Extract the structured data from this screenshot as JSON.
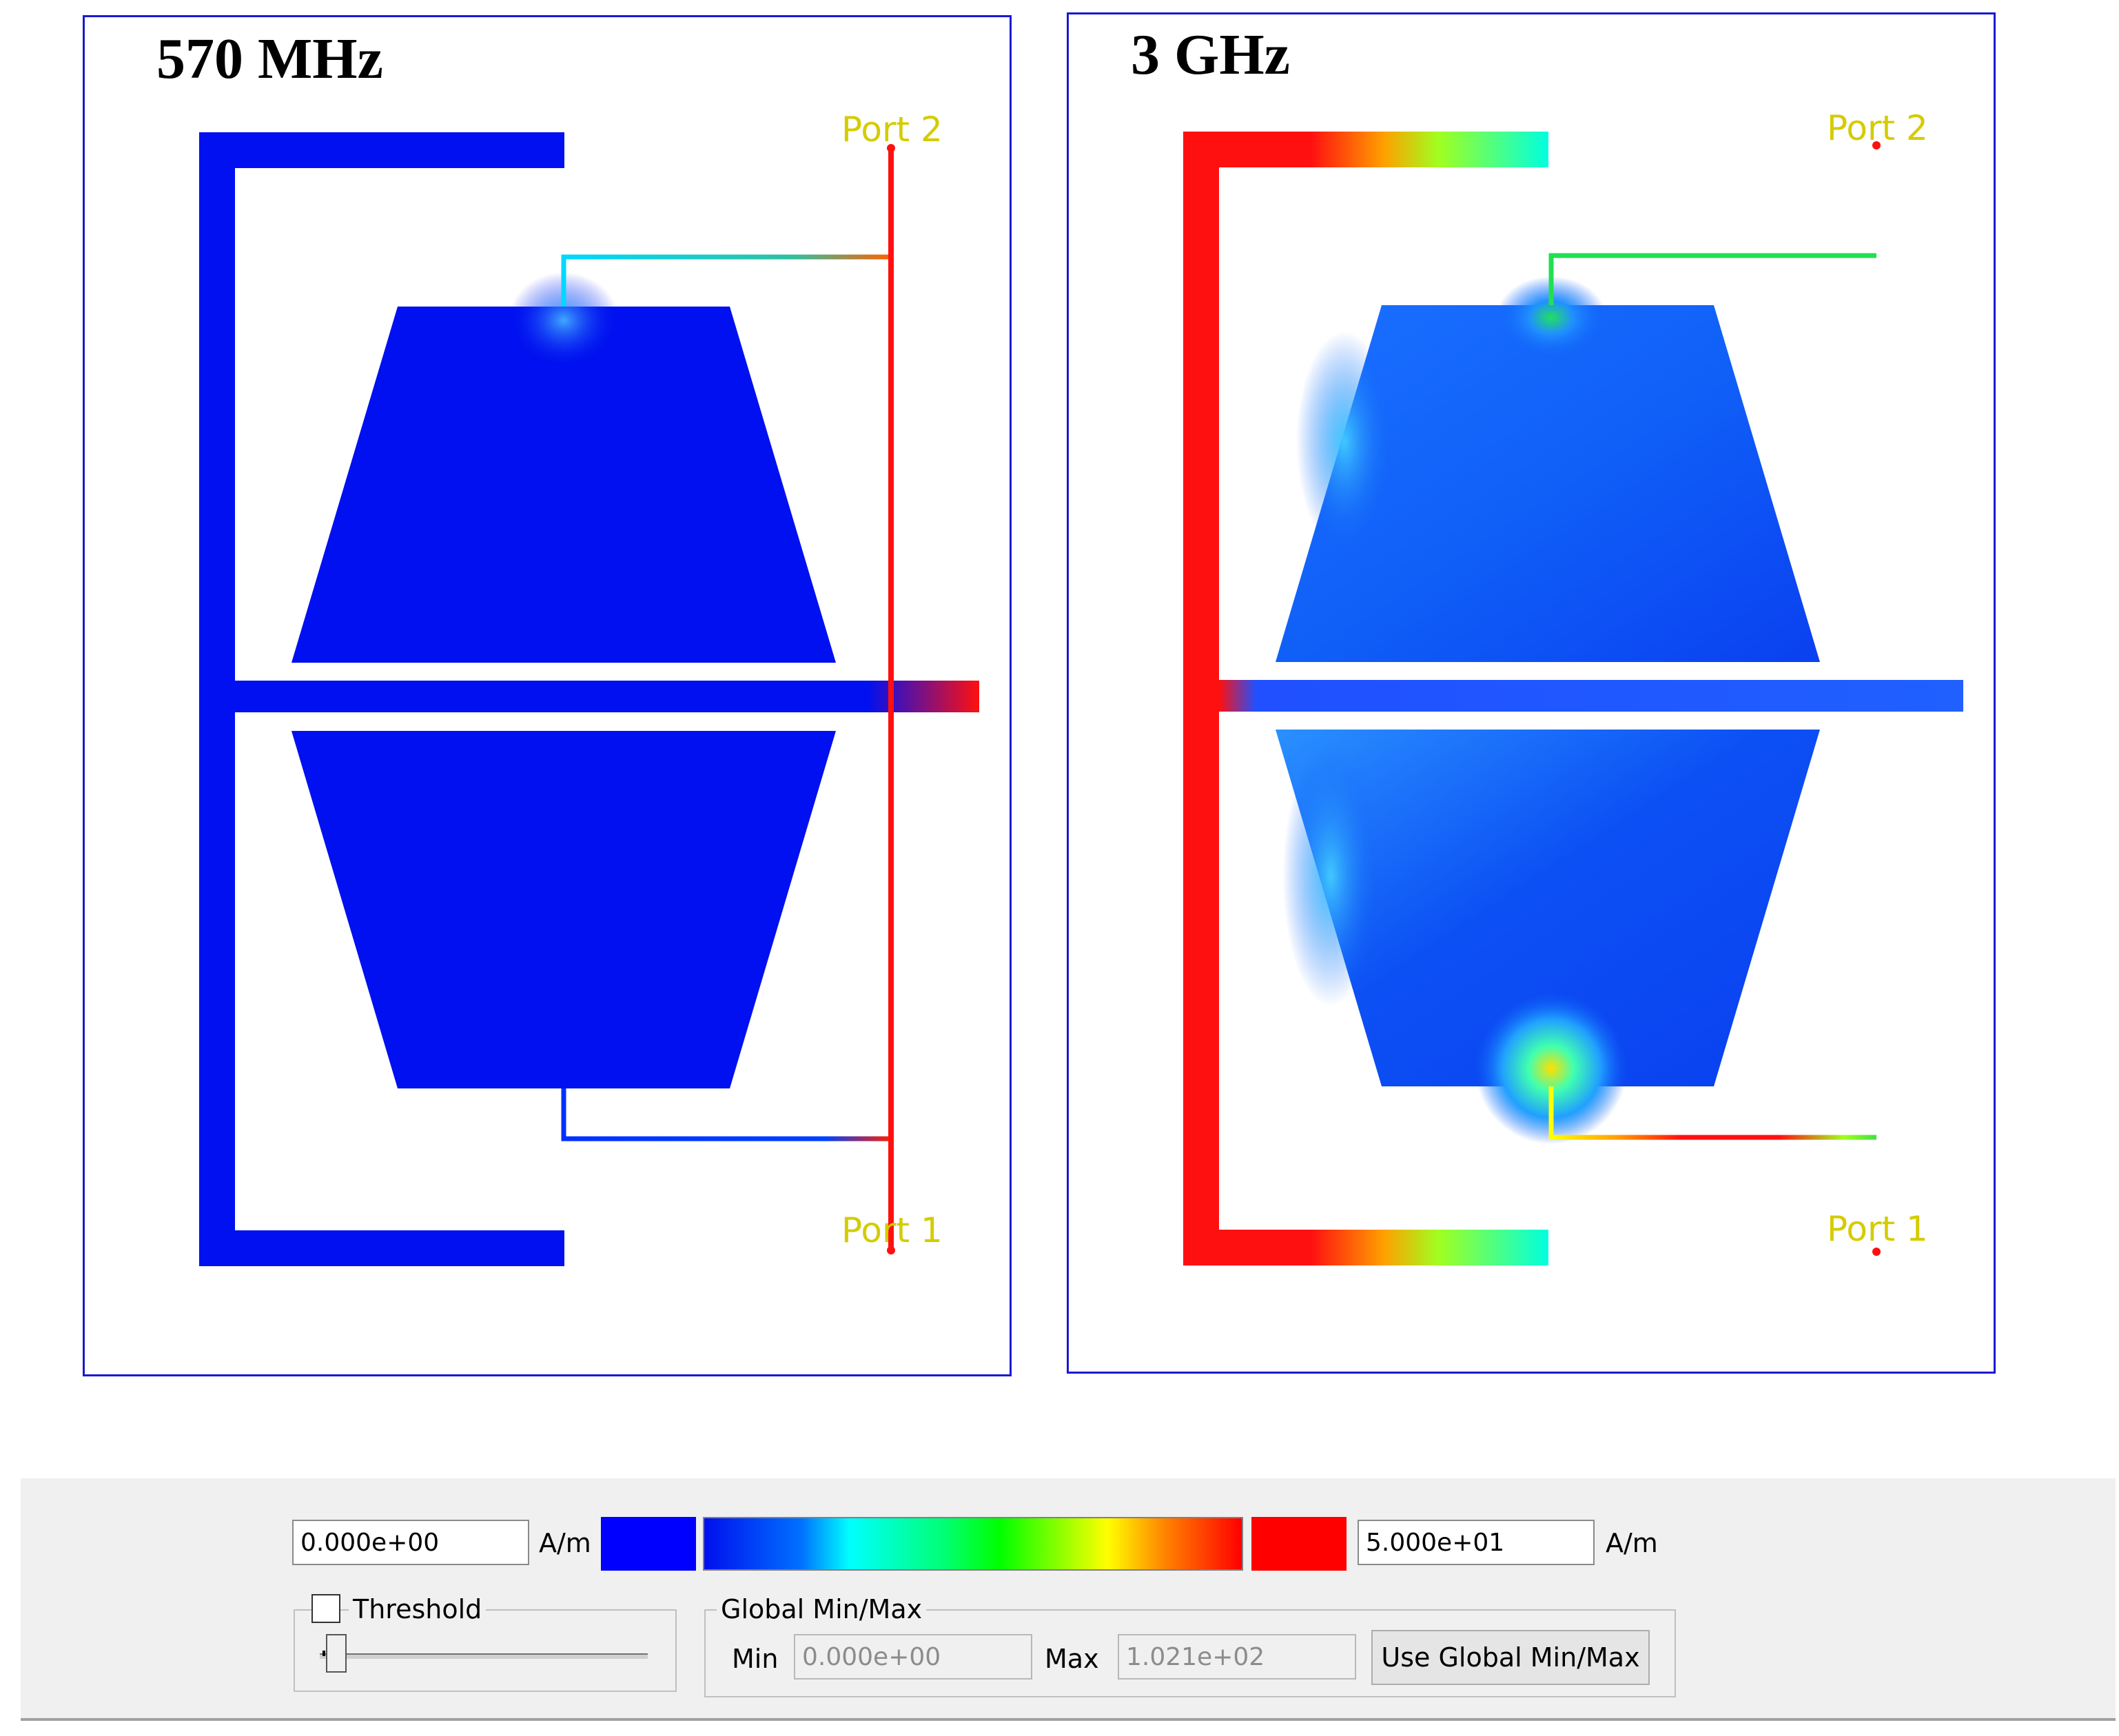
{
  "panels": [
    {
      "title": "570 MHz",
      "port_top": "Port 2",
      "port_bottom": "Port 1"
    },
    {
      "title": "3 GHz",
      "port_top": "Port 2",
      "port_bottom": "Port 1"
    }
  ],
  "controls": {
    "min_value": "0.000e+00",
    "max_value": "5.000e+01",
    "unit": "A/m",
    "min_color": "#0000ff",
    "max_color": "#ff0000",
    "threshold_label": "Threshold",
    "threshold_checked": false,
    "threshold_level": 0.04,
    "global_group_title": "Global Min/Max",
    "global_min_label": "Min",
    "global_min_value": "0.000e+00",
    "global_max_label": "Max",
    "global_max_value": "1.021e+02",
    "use_global_button": "Use Global Min/Max"
  }
}
